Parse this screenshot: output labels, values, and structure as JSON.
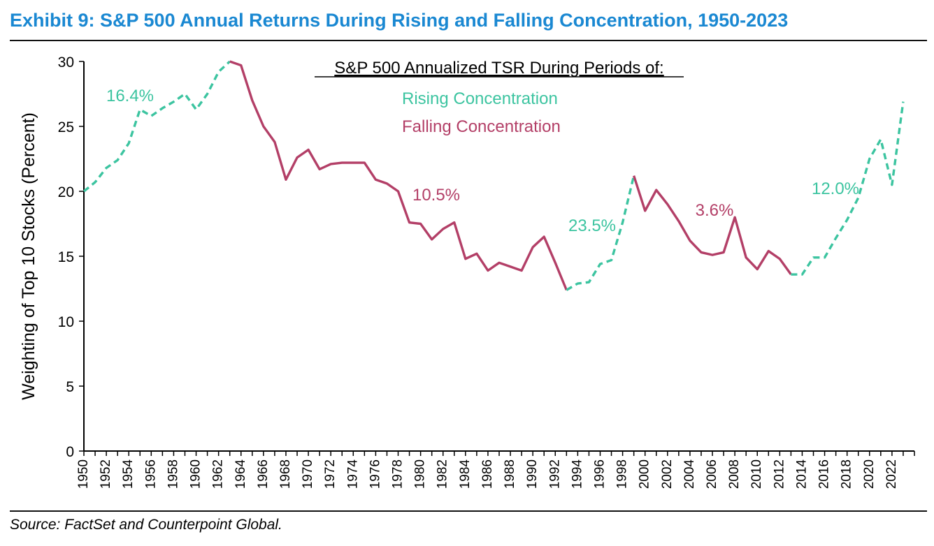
{
  "title": "Exhibit 9: S&P 500 Annual Returns During Rising and Falling Concentration, 1950-2023",
  "source": "Source: FactSet and Counterpoint Global.",
  "colors": {
    "title": "#1a88d2",
    "rising": "#3cc4a0",
    "falling": "#b33f67",
    "axis": "#000000"
  },
  "chart_data": {
    "type": "line",
    "title": "S&P 500 Annualized TSR During Periods of:",
    "xlabel": "",
    "ylabel": "Weighting of Top 10 Stocks (Percent)",
    "xlim": [
      1950,
      2023
    ],
    "ylim": [
      0,
      30
    ],
    "yticks": [
      0,
      5,
      10,
      15,
      20,
      25,
      30
    ],
    "xticks": [
      "1950",
      "1952",
      "1954",
      "1956",
      "1958",
      "1960",
      "1962",
      "1964",
      "1966",
      "1968",
      "1970",
      "1972",
      "1974",
      "1976",
      "1978",
      "1980",
      "1982",
      "1984",
      "1986",
      "1988",
      "1990",
      "1992",
      "1994",
      "1996",
      "1998",
      "2000",
      "2002",
      "2004",
      "2006",
      "2008",
      "2010",
      "2012",
      "2014",
      "2016",
      "2018",
      "2020",
      "2022"
    ],
    "legend": [
      {
        "label": "Rising Concentration",
        "series": "rising"
      },
      {
        "label": "Falling Concentration",
        "series": "falling"
      }
    ],
    "x": [
      1950,
      1951,
      1952,
      1953,
      1954,
      1955,
      1956,
      1957,
      1958,
      1959,
      1960,
      1961,
      1962,
      1963,
      1964,
      1965,
      1966,
      1967,
      1968,
      1969,
      1970,
      1971,
      1972,
      1973,
      1974,
      1975,
      1976,
      1977,
      1978,
      1979,
      1980,
      1981,
      1982,
      1983,
      1984,
      1985,
      1986,
      1987,
      1988,
      1989,
      1990,
      1991,
      1992,
      1993,
      1994,
      1995,
      1996,
      1997,
      1998,
      1999,
      2000,
      2001,
      2002,
      2003,
      2004,
      2005,
      2006,
      2007,
      2008,
      2009,
      2010,
      2011,
      2012,
      2013,
      2014,
      2015,
      2016,
      2017,
      2018,
      2019,
      2020,
      2021,
      2022,
      2023
    ],
    "values": [
      20.0,
      20.7,
      21.8,
      22.4,
      23.7,
      26.3,
      25.8,
      26.4,
      26.9,
      27.5,
      26.3,
      27.5,
      29.2,
      30.0,
      29.7,
      27.0,
      25.0,
      23.8,
      20.9,
      22.6,
      23.2,
      21.7,
      22.1,
      22.2,
      22.2,
      22.2,
      20.9,
      20.6,
      20.0,
      17.6,
      17.5,
      16.3,
      17.1,
      17.6,
      14.8,
      15.2,
      13.9,
      14.5,
      14.2,
      13.9,
      15.7,
      16.5,
      14.5,
      12.4,
      12.9,
      13.0,
      14.4,
      14.7,
      17.6,
      21.2,
      18.5,
      20.1,
      19.0,
      17.7,
      16.2,
      15.3,
      15.1,
      15.3,
      18.0,
      14.9,
      14.0,
      15.4,
      14.8,
      13.6,
      13.6,
      14.9,
      14.9,
      16.4,
      17.8,
      19.5,
      22.5,
      24.0,
      20.5,
      26.9
    ],
    "segments": [
      {
        "kind": "rising",
        "start": 1950,
        "end": 1963,
        "annotation": "16.4%"
      },
      {
        "kind": "falling",
        "start": 1963,
        "end": 1993,
        "annotation": "10.5%"
      },
      {
        "kind": "rising",
        "start": 1993,
        "end": 1999,
        "annotation": "23.5%"
      },
      {
        "kind": "falling",
        "start": 1999,
        "end": 2013,
        "annotation": "3.6%"
      },
      {
        "kind": "rising",
        "start": 2013,
        "end": 2023,
        "annotation": "12.0%"
      }
    ]
  }
}
